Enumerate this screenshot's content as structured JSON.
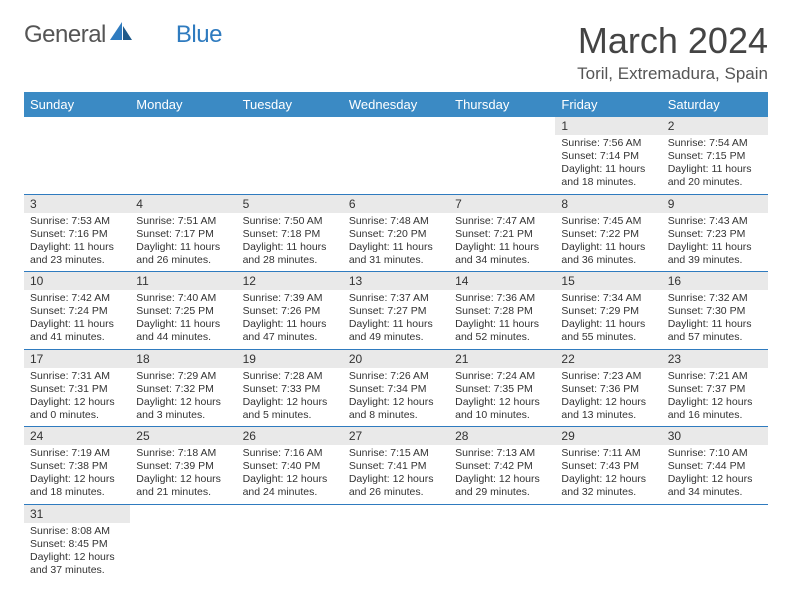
{
  "logo": {
    "text1": "General",
    "text2": "Blue"
  },
  "title": "March 2024",
  "location": "Toril, Extremadura, Spain",
  "colors": {
    "header_bg": "#3b8ac4",
    "header_text": "#ffffff",
    "daynum_bg": "#e9e9e9",
    "row_border": "#2f7bbf",
    "logo_accent": "#2f7bbf",
    "body_text": "#333333"
  },
  "weekdays": [
    "Sunday",
    "Monday",
    "Tuesday",
    "Wednesday",
    "Thursday",
    "Friday",
    "Saturday"
  ],
  "weeks": [
    [
      null,
      null,
      null,
      null,
      null,
      {
        "n": "1",
        "sr": "7:56 AM",
        "ss": "7:14 PM",
        "dl": "11 hours and 18 minutes."
      },
      {
        "n": "2",
        "sr": "7:54 AM",
        "ss": "7:15 PM",
        "dl": "11 hours and 20 minutes."
      }
    ],
    [
      {
        "n": "3",
        "sr": "7:53 AM",
        "ss": "7:16 PM",
        "dl": "11 hours and 23 minutes."
      },
      {
        "n": "4",
        "sr": "7:51 AM",
        "ss": "7:17 PM",
        "dl": "11 hours and 26 minutes."
      },
      {
        "n": "5",
        "sr": "7:50 AM",
        "ss": "7:18 PM",
        "dl": "11 hours and 28 minutes."
      },
      {
        "n": "6",
        "sr": "7:48 AM",
        "ss": "7:20 PM",
        "dl": "11 hours and 31 minutes."
      },
      {
        "n": "7",
        "sr": "7:47 AM",
        "ss": "7:21 PM",
        "dl": "11 hours and 34 minutes."
      },
      {
        "n": "8",
        "sr": "7:45 AM",
        "ss": "7:22 PM",
        "dl": "11 hours and 36 minutes."
      },
      {
        "n": "9",
        "sr": "7:43 AM",
        "ss": "7:23 PM",
        "dl": "11 hours and 39 minutes."
      }
    ],
    [
      {
        "n": "10",
        "sr": "7:42 AM",
        "ss": "7:24 PM",
        "dl": "11 hours and 41 minutes."
      },
      {
        "n": "11",
        "sr": "7:40 AM",
        "ss": "7:25 PM",
        "dl": "11 hours and 44 minutes."
      },
      {
        "n": "12",
        "sr": "7:39 AM",
        "ss": "7:26 PM",
        "dl": "11 hours and 47 minutes."
      },
      {
        "n": "13",
        "sr": "7:37 AM",
        "ss": "7:27 PM",
        "dl": "11 hours and 49 minutes."
      },
      {
        "n": "14",
        "sr": "7:36 AM",
        "ss": "7:28 PM",
        "dl": "11 hours and 52 minutes."
      },
      {
        "n": "15",
        "sr": "7:34 AM",
        "ss": "7:29 PM",
        "dl": "11 hours and 55 minutes."
      },
      {
        "n": "16",
        "sr": "7:32 AM",
        "ss": "7:30 PM",
        "dl": "11 hours and 57 minutes."
      }
    ],
    [
      {
        "n": "17",
        "sr": "7:31 AM",
        "ss": "7:31 PM",
        "dl": "12 hours and 0 minutes."
      },
      {
        "n": "18",
        "sr": "7:29 AM",
        "ss": "7:32 PM",
        "dl": "12 hours and 3 minutes."
      },
      {
        "n": "19",
        "sr": "7:28 AM",
        "ss": "7:33 PM",
        "dl": "12 hours and 5 minutes."
      },
      {
        "n": "20",
        "sr": "7:26 AM",
        "ss": "7:34 PM",
        "dl": "12 hours and 8 minutes."
      },
      {
        "n": "21",
        "sr": "7:24 AM",
        "ss": "7:35 PM",
        "dl": "12 hours and 10 minutes."
      },
      {
        "n": "22",
        "sr": "7:23 AM",
        "ss": "7:36 PM",
        "dl": "12 hours and 13 minutes."
      },
      {
        "n": "23",
        "sr": "7:21 AM",
        "ss": "7:37 PM",
        "dl": "12 hours and 16 minutes."
      }
    ],
    [
      {
        "n": "24",
        "sr": "7:19 AM",
        "ss": "7:38 PM",
        "dl": "12 hours and 18 minutes."
      },
      {
        "n": "25",
        "sr": "7:18 AM",
        "ss": "7:39 PM",
        "dl": "12 hours and 21 minutes."
      },
      {
        "n": "26",
        "sr": "7:16 AM",
        "ss": "7:40 PM",
        "dl": "12 hours and 24 minutes."
      },
      {
        "n": "27",
        "sr": "7:15 AM",
        "ss": "7:41 PM",
        "dl": "12 hours and 26 minutes."
      },
      {
        "n": "28",
        "sr": "7:13 AM",
        "ss": "7:42 PM",
        "dl": "12 hours and 29 minutes."
      },
      {
        "n": "29",
        "sr": "7:11 AM",
        "ss": "7:43 PM",
        "dl": "12 hours and 32 minutes."
      },
      {
        "n": "30",
        "sr": "7:10 AM",
        "ss": "7:44 PM",
        "dl": "12 hours and 34 minutes."
      }
    ],
    [
      {
        "n": "31",
        "sr": "8:08 AM",
        "ss": "8:45 PM",
        "dl": "12 hours and 37 minutes."
      },
      null,
      null,
      null,
      null,
      null,
      null
    ]
  ],
  "labels": {
    "sunrise": "Sunrise:",
    "sunset": "Sunset:",
    "daylight": "Daylight:"
  }
}
